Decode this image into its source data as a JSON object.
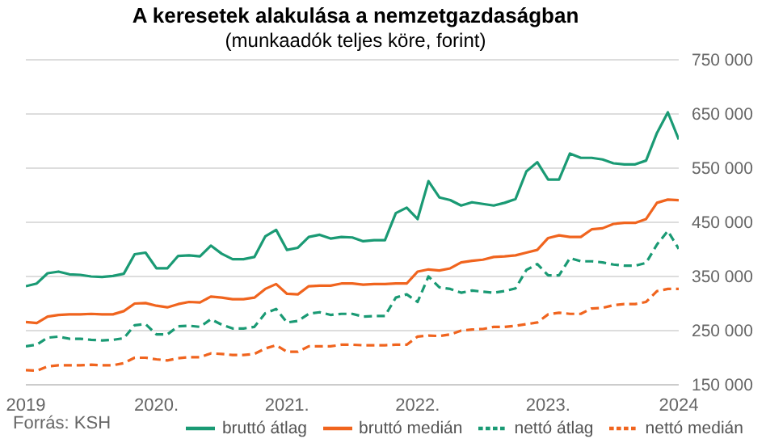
{
  "chart_data": {
    "type": "line",
    "title": "A keresetek alakulása a nemzetgazdaságban",
    "subtitle": "(munkaadók teljes köre, forint)",
    "x": [
      "2019-01",
      "2019-02",
      "2019-03",
      "2019-04",
      "2019-05",
      "2019-06",
      "2019-07",
      "2019-08",
      "2019-09",
      "2019-10",
      "2019-11",
      "2019-12",
      "2020-01",
      "2020-02",
      "2020-03",
      "2020-04",
      "2020-05",
      "2020-06",
      "2020-07",
      "2020-08",
      "2020-09",
      "2020-10",
      "2020-11",
      "2020-12",
      "2021-01",
      "2021-02",
      "2021-03",
      "2021-04",
      "2021-05",
      "2021-06",
      "2021-07",
      "2021-08",
      "2021-09",
      "2021-10",
      "2021-11",
      "2021-12",
      "2022-01",
      "2022-02",
      "2022-03",
      "2022-04",
      "2022-05",
      "2022-06",
      "2022-07",
      "2022-08",
      "2022-09",
      "2022-10",
      "2022-11",
      "2022-12",
      "2023-01",
      "2023-02",
      "2023-03",
      "2023-04",
      "2023-05",
      "2023-06",
      "2023-07",
      "2023-08",
      "2023-09",
      "2023-10",
      "2023-11",
      "2023-12",
      "2024-01"
    ],
    "series": [
      {
        "name": "bruttó átlag",
        "color": "#1a9a74",
        "line_style": "solid",
        "values": [
          332000,
          337000,
          356000,
          359000,
          354000,
          353000,
          350000,
          349000,
          351000,
          355000,
          391000,
          394000,
          365000,
          365000,
          388000,
          389000,
          387000,
          407000,
          392000,
          382000,
          382000,
          386000,
          424000,
          436000,
          399000,
          403000,
          423000,
          427000,
          420000,
          423000,
          422000,
          415000,
          417000,
          417000,
          467000,
          477000,
          456000,
          526000,
          496000,
          491000,
          481000,
          487000,
          484000,
          481000,
          486000,
          493000,
          544000,
          561000,
          529000,
          529000,
          577000,
          569000,
          569000,
          566000,
          559000,
          557000,
          557000,
          564000,
          615000,
          653000,
          603000
        ]
      },
      {
        "name": "bruttó medián",
        "color": "#f0641e",
        "line_style": "solid",
        "values": [
          266000,
          264000,
          276000,
          279000,
          280000,
          280000,
          281000,
          280000,
          280000,
          286000,
          300000,
          301000,
          296000,
          293000,
          299000,
          303000,
          302000,
          313000,
          311000,
          308000,
          308000,
          311000,
          327000,
          336000,
          318000,
          317000,
          332000,
          333000,
          333000,
          337000,
          337000,
          335000,
          336000,
          336000,
          337000,
          337000,
          359000,
          363000,
          361000,
          365000,
          376000,
          379000,
          381000,
          386000,
          387000,
          389000,
          394000,
          399000,
          421000,
          426000,
          423000,
          423000,
          437000,
          439000,
          447000,
          449000,
          449000,
          456000,
          486000,
          492000,
          491000
        ]
      },
      {
        "name": "nettó átlag",
        "color": "#1a9a74",
        "line_style": "dashed",
        "values": [
          221000,
          224000,
          237000,
          239000,
          235000,
          235000,
          233000,
          232000,
          233000,
          236000,
          260000,
          262000,
          243000,
          243000,
          258000,
          259000,
          257000,
          271000,
          261000,
          254000,
          254000,
          257000,
          282000,
          290000,
          265000,
          268000,
          281000,
          284000,
          279000,
          281000,
          281000,
          276000,
          277000,
          277000,
          311000,
          317000,
          303000,
          350000,
          330000,
          327000,
          320000,
          324000,
          322000,
          320000,
          323000,
          328000,
          362000,
          373000,
          352000,
          352000,
          384000,
          378000,
          378000,
          376000,
          372000,
          370000,
          370000,
          375000,
          409000,
          434000,
          401000
        ]
      },
      {
        "name": "nettó medián",
        "color": "#f0641e",
        "line_style": "dashed",
        "values": [
          177000,
          176000,
          184000,
          186000,
          186000,
          186000,
          187000,
          186000,
          186000,
          190000,
          200000,
          200000,
          197000,
          195000,
          199000,
          201000,
          201000,
          208000,
          207000,
          205000,
          205000,
          207000,
          217000,
          223000,
          211000,
          211000,
          221000,
          221000,
          221000,
          224000,
          224000,
          223000,
          223000,
          223000,
          224000,
          224000,
          239000,
          241000,
          240000,
          243000,
          250000,
          252000,
          253000,
          257000,
          257000,
          259000,
          262000,
          265000,
          280000,
          283000,
          281000,
          281000,
          291000,
          292000,
          297000,
          299000,
          299000,
          303000,
          323000,
          327000,
          327000
        ]
      }
    ],
    "xlim": [
      "2019-01",
      "2024-01"
    ],
    "xticks": [
      {
        "value": "2019-01",
        "label": "2019"
      },
      {
        "value": "2020-01",
        "label": "2020."
      },
      {
        "value": "2021-01",
        "label": "2021."
      },
      {
        "value": "2022-01",
        "label": "2022."
      },
      {
        "value": "2023-01",
        "label": "2023."
      },
      {
        "value": "2024-01",
        "label": "2024"
      }
    ],
    "ylim": [
      150000,
      750000
    ],
    "yticks": [
      {
        "value": 150000,
        "label": "150 000"
      },
      {
        "value": 250000,
        "label": "250 000"
      },
      {
        "value": 350000,
        "label": "350 000"
      },
      {
        "value": 450000,
        "label": "450 000"
      },
      {
        "value": 550000,
        "label": "550 000"
      },
      {
        "value": 650000,
        "label": "650 000"
      },
      {
        "value": 750000,
        "label": "750 000"
      }
    ],
    "grid": "y",
    "legend": "bottom right",
    "annotations": [
      "Forrás: KSH"
    ]
  }
}
